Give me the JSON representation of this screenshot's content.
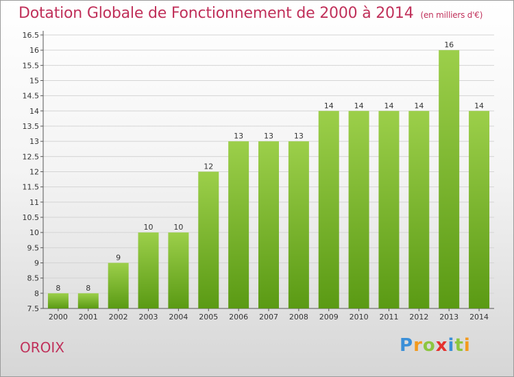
{
  "header": {
    "title": "Dotation Globale de Fonctionnement de 2000 à 2014",
    "subtitle": "(en milliers d'€)"
  },
  "footer": {
    "commune": "OROIX",
    "logo_text": "Proxiti"
  },
  "colors": {
    "title": "#c0305a",
    "bar_top": "#9ccf4a",
    "bar_bottom": "#5a9a14",
    "grid": "#d4d4d4"
  },
  "chart_data": {
    "type": "bar",
    "title": "Dotation Globale de Fonctionnement de 2000 à 2014",
    "subtitle": "(en milliers d'€)",
    "categories": [
      "2000",
      "2001",
      "2002",
      "2003",
      "2004",
      "2005",
      "2006",
      "2007",
      "2008",
      "2009",
      "2010",
      "2011",
      "2012",
      "2013",
      "2014"
    ],
    "values": [
      8,
      8,
      9,
      10,
      10,
      12,
      13,
      13,
      13,
      14,
      14,
      14,
      14,
      16,
      14
    ],
    "labels": [
      "8",
      "8",
      "9",
      "10",
      "10",
      "12",
      "13",
      "13",
      "13",
      "14",
      "14",
      "14",
      "14",
      "16",
      "14"
    ],
    "ylim": [
      7.5,
      16.5
    ],
    "yticks": [
      "7.5",
      "8",
      "8.5",
      "9",
      "9.5",
      "10",
      "10.5",
      "11",
      "11.5",
      "12",
      "12.5",
      "13",
      "13.5",
      "14",
      "14.5",
      "15",
      "15.5",
      "16",
      "16.5"
    ],
    "grid": true,
    "xlabel": "",
    "ylabel": ""
  }
}
